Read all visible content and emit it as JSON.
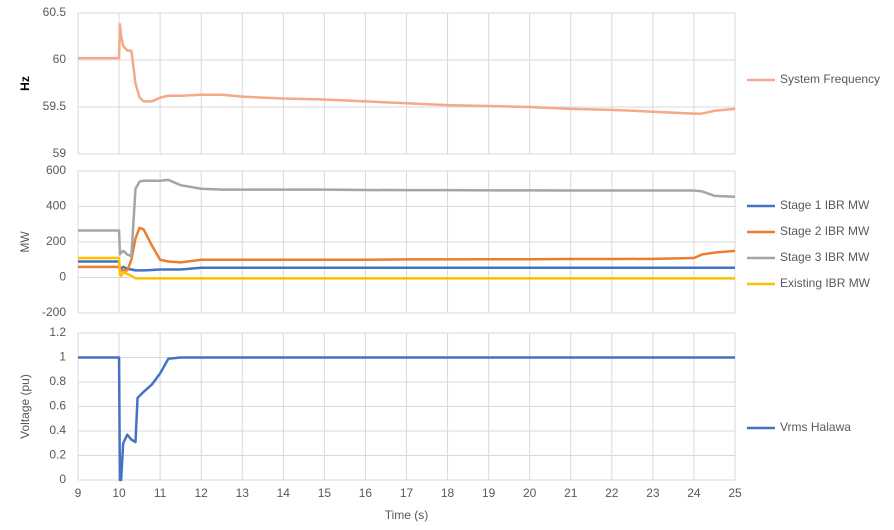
{
  "chart_data": [
    {
      "type": "line",
      "ylabel": "Hz",
      "xlim": [
        9,
        25
      ],
      "ylim": [
        59,
        60.5
      ],
      "yticks": [
        59,
        59.5,
        60,
        60.5
      ],
      "grid": true,
      "legend": "right",
      "x": [
        9,
        9.5,
        10,
        10.02,
        10.05,
        10.1,
        10.2,
        10.3,
        10.4,
        10.5,
        10.6,
        10.8,
        11,
        11.2,
        11.5,
        12,
        12.5,
        13,
        14,
        15,
        16,
        17,
        18,
        19,
        20,
        21,
        22,
        23,
        24,
        24.2,
        24.5,
        25
      ],
      "series": [
        {
          "name": "System Frequency",
          "color": "#f4a989",
          "values": [
            60.02,
            60.02,
            60.02,
            60.38,
            60.25,
            60.15,
            60.1,
            60.1,
            59.75,
            59.6,
            59.56,
            59.56,
            59.6,
            59.62,
            59.62,
            59.63,
            59.63,
            59.61,
            59.59,
            59.58,
            59.56,
            59.54,
            59.52,
            59.51,
            59.5,
            59.48,
            59.47,
            59.45,
            59.43,
            59.43,
            59.46,
            59.48
          ]
        }
      ]
    },
    {
      "type": "line",
      "ylabel": "MW",
      "xlim": [
        9,
        25
      ],
      "ylim": [
        -200,
        600
      ],
      "yticks": [
        -200,
        0,
        200,
        400,
        600
      ],
      "grid": true,
      "legend": "right",
      "x": [
        9,
        9.5,
        10,
        10.02,
        10.05,
        10.1,
        10.2,
        10.3,
        10.4,
        10.5,
        10.6,
        10.8,
        11,
        11.2,
        11.5,
        12,
        12.5,
        13,
        14,
        15,
        16,
        17,
        18,
        19,
        20,
        21,
        22,
        23,
        24,
        24.2,
        24.5,
        25
      ],
      "series": [
        {
          "name": "Stage 1 IBR MW",
          "color": "#4472c4",
          "values": [
            90,
            90,
            90,
            40,
            50,
            60,
            50,
            45,
            40,
            40,
            40,
            42,
            45,
            45,
            45,
            55,
            55,
            55,
            55,
            55,
            55,
            55,
            55,
            55,
            55,
            55,
            55,
            55,
            55,
            55,
            55,
            55
          ]
        },
        {
          "name": "Stage 2 IBR MW",
          "color": "#ed7d31",
          "values": [
            60,
            60,
            60,
            40,
            40,
            40,
            40,
            100,
            220,
            280,
            270,
            180,
            100,
            90,
            85,
            100,
            100,
            100,
            100,
            100,
            100,
            102,
            102,
            103,
            103,
            104,
            104,
            105,
            110,
            130,
            140,
            150
          ]
        },
        {
          "name": "Stage 3 IBR MW",
          "color": "#a5a5a5",
          "values": [
            265,
            265,
            265,
            130,
            140,
            150,
            130,
            120,
            500,
            540,
            545,
            545,
            545,
            550,
            520,
            500,
            495,
            495,
            495,
            495,
            493,
            492,
            492,
            491,
            491,
            490,
            490,
            490,
            490,
            485,
            460,
            455
          ]
        },
        {
          "name": "Existing IBR MW",
          "color": "#ffc000",
          "values": [
            110,
            110,
            110,
            20,
            10,
            30,
            20,
            10,
            -5,
            -5,
            -5,
            -5,
            -5,
            -5,
            -5,
            -5,
            -5,
            -5,
            -5,
            -5,
            -5,
            -5,
            -5,
            -5,
            -5,
            -5,
            -5,
            -5,
            -5,
            -5,
            -5,
            -5
          ]
        }
      ]
    },
    {
      "type": "line",
      "ylabel": "Voltage (pu)",
      "xlabel": "Time (s)",
      "xlim": [
        9,
        25
      ],
      "ylim": [
        0,
        1.2
      ],
      "yticks": [
        0,
        0.2,
        0.4,
        0.6,
        0.8,
        1,
        1.2
      ],
      "xticks": [
        9,
        10,
        11,
        12,
        13,
        14,
        15,
        16,
        17,
        18,
        19,
        20,
        21,
        22,
        23,
        24,
        25
      ],
      "grid": true,
      "legend": "right",
      "x": [
        9,
        9.5,
        10,
        10.02,
        10.05,
        10.1,
        10.2,
        10.3,
        10.4,
        10.45,
        10.6,
        10.8,
        11,
        11.2,
        11.5,
        12,
        12.5,
        13,
        14,
        15,
        16,
        17,
        18,
        19,
        20,
        21,
        22,
        23,
        24,
        25
      ],
      "series": [
        {
          "name": "Vrms Halawa",
          "color": "#4472c4",
          "values": [
            1,
            1,
            1,
            0,
            0,
            0.3,
            0.37,
            0.33,
            0.31,
            0.67,
            0.72,
            0.78,
            0.87,
            0.99,
            1,
            1,
            1,
            1,
            1,
            1,
            1,
            1,
            1,
            1,
            1,
            1,
            1,
            1,
            1,
            1
          ]
        }
      ]
    }
  ]
}
